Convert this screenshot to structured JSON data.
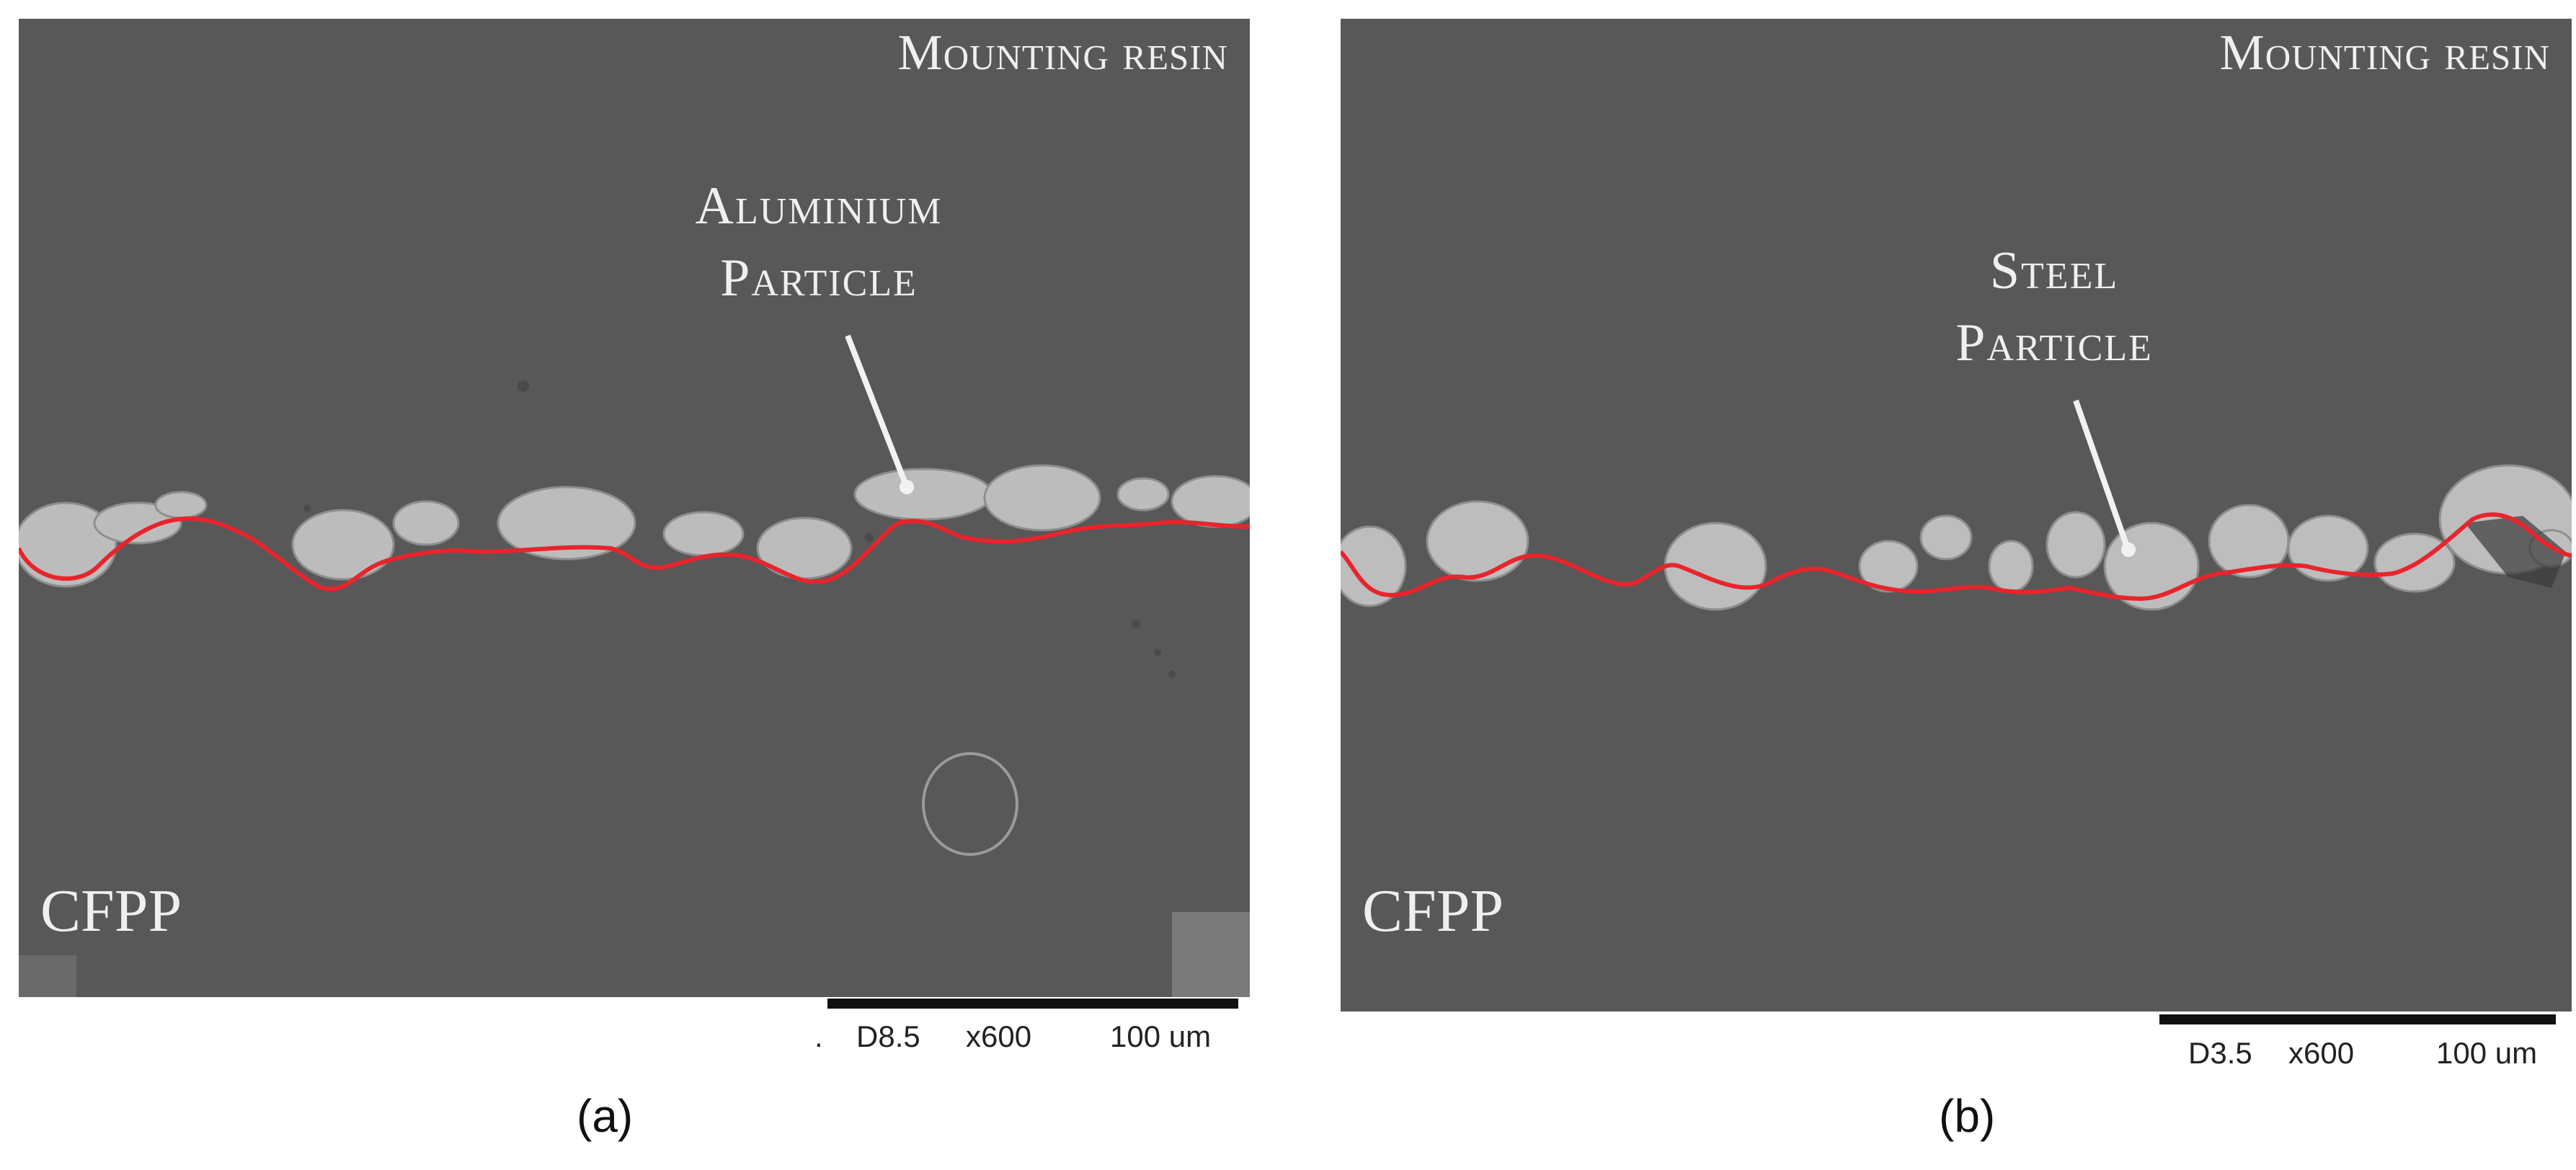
{
  "panels": [
    {
      "id": "a",
      "resin_label": "Mounting resin",
      "particle_label_line1": "Aluminium",
      "particle_label_line2": "Particle",
      "cfpp_label": "CFPP",
      "scale_prefix": ".",
      "scale_d": "D8.5",
      "scale_mag": "x600",
      "scale_len": "100 um",
      "caption": "(a)"
    },
    {
      "id": "b",
      "resin_label": "Mounting resin",
      "particle_label_line1": "Steel",
      "particle_label_line2": "Particle",
      "cfpp_label": "CFPP",
      "scale_d": "D3.5",
      "scale_mag": "x600",
      "scale_len": "100 um",
      "caption": "(b)"
    }
  ],
  "colors": {
    "background": "#585858",
    "particle": "#bdbdbd",
    "interface_line": "#e8242c",
    "label_text": "#efefef"
  }
}
